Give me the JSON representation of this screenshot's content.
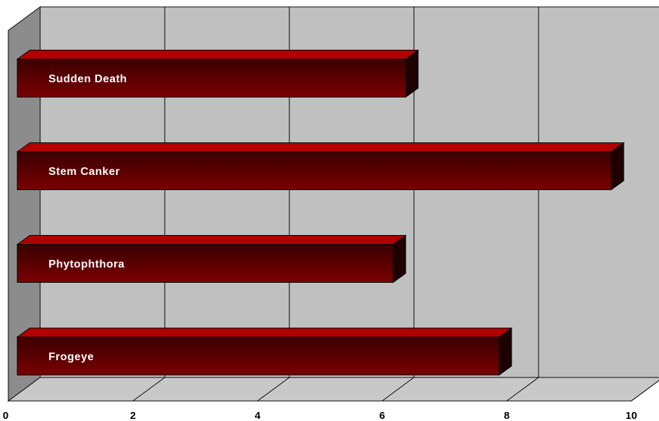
{
  "chart_data": {
    "type": "bar",
    "orientation": "horizontal",
    "style": "3d",
    "categories": [
      "Sudden Death",
      "Stem Canker",
      "Phytophthora",
      "Frogeye"
    ],
    "values": [
      6.4,
      9.7,
      6.2,
      7.9
    ],
    "xlim": [
      0,
      10
    ],
    "x_ticks": [
      "0",
      "2",
      "4",
      "6",
      "8",
      "10"
    ],
    "grid": "vertical",
    "labels_inside_bars": true,
    "title": "",
    "xlabel": "",
    "ylabel": "",
    "colors": {
      "bar_top": "#3a0000",
      "bar_bottom": "#7a0000",
      "bar_top_face": "#b00000",
      "bar_side_face": "#1e0000",
      "plot_wall": "#c0c0c0",
      "side_wall": "#8c8c8c",
      "floor": "#c8c8c8"
    }
  }
}
